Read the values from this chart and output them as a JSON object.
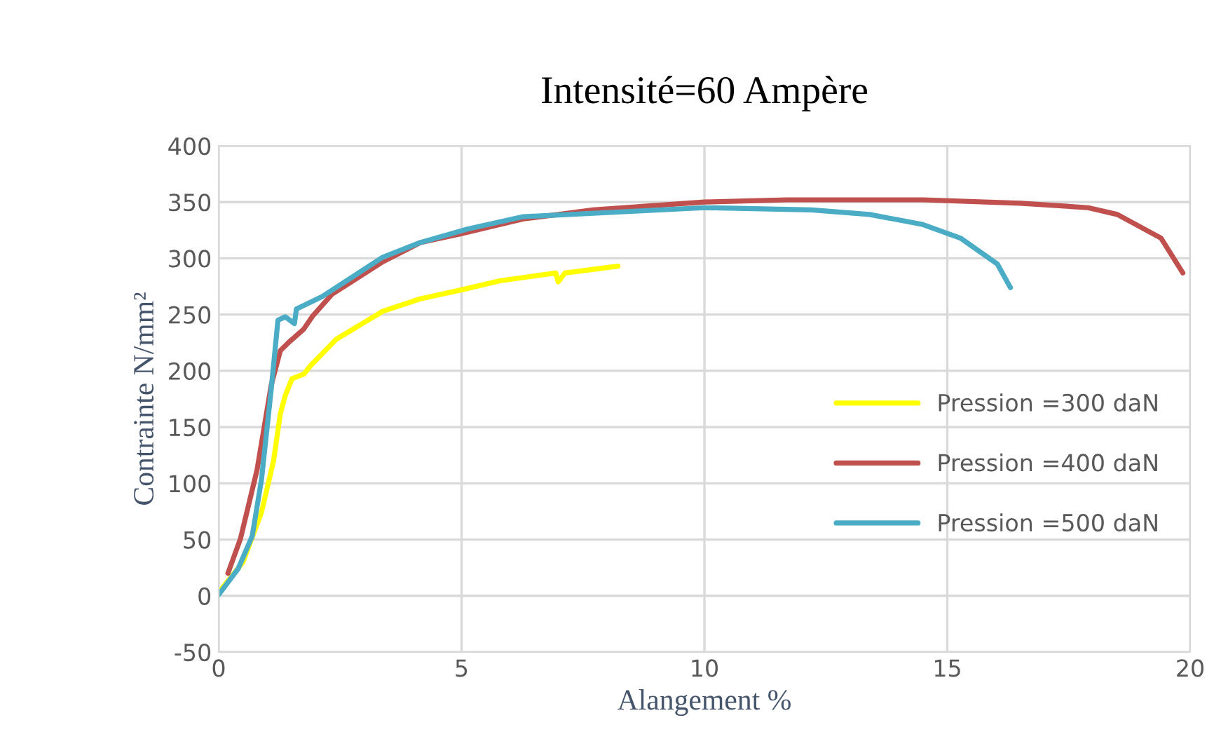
{
  "chart_data": {
    "type": "line",
    "title": "Intensité=60 Ampère",
    "xlabel": "Alangement %",
    "ylabel": "Contrainte N/mm²",
    "xlim": [
      0,
      20
    ],
    "xticks": [
      0,
      5,
      10,
      15,
      20
    ],
    "ylim": [
      -50,
      400
    ],
    "yticks": [
      -50,
      0,
      50,
      100,
      150,
      200,
      250,
      300,
      350,
      400
    ],
    "grid": true,
    "legend": "right",
    "marker": "none",
    "line_style": "solid",
    "series": [
      {
        "name": "Pression =300 daN",
        "color": "#ffff00",
        "x": [
          0,
          0.5,
          0.88,
          1.13,
          1.27,
          1.37,
          1.51,
          1.75,
          1.9,
          2.42,
          3.38,
          4.15,
          5.0,
          5.79,
          6.94,
          6.99,
          7.13,
          8.22
        ],
        "values": [
          3,
          30,
          74,
          120,
          162,
          178,
          193,
          197,
          205,
          228,
          253,
          264,
          272,
          280,
          287,
          279,
          287,
          293
        ]
      },
      {
        "name": "Pression =400 daN",
        "color": "#c0504d",
        "x": [
          0.19,
          0.45,
          0.79,
          1.08,
          1.27,
          1.46,
          1.75,
          1.94,
          2.33,
          3.38,
          4.15,
          5.0,
          6.27,
          7.71,
          10,
          11.7,
          14.5,
          16.5,
          17.9,
          18.5,
          19.4,
          19.85
        ],
        "values": [
          20,
          51,
          112,
          187,
          218,
          226,
          237,
          249,
          268,
          297,
          314,
          322,
          335,
          343,
          350,
          352,
          352,
          349,
          345,
          339,
          318,
          287
        ]
      },
      {
        "name": "Pression =500 daN",
        "color": "#4bacc6",
        "x": [
          0,
          0.4,
          0.69,
          0.88,
          1.08,
          1.22,
          1.37,
          1.56,
          1.6,
          2.13,
          3.38,
          4.15,
          5.12,
          6.27,
          10,
          12.2,
          13.4,
          14.5,
          15.27,
          16.03,
          16.3
        ],
        "values": [
          1,
          24,
          53,
          103,
          183,
          245,
          248,
          242,
          255,
          266,
          301,
          314,
          326,
          337,
          345,
          343,
          339,
          330,
          318,
          295,
          274
        ]
      }
    ]
  }
}
